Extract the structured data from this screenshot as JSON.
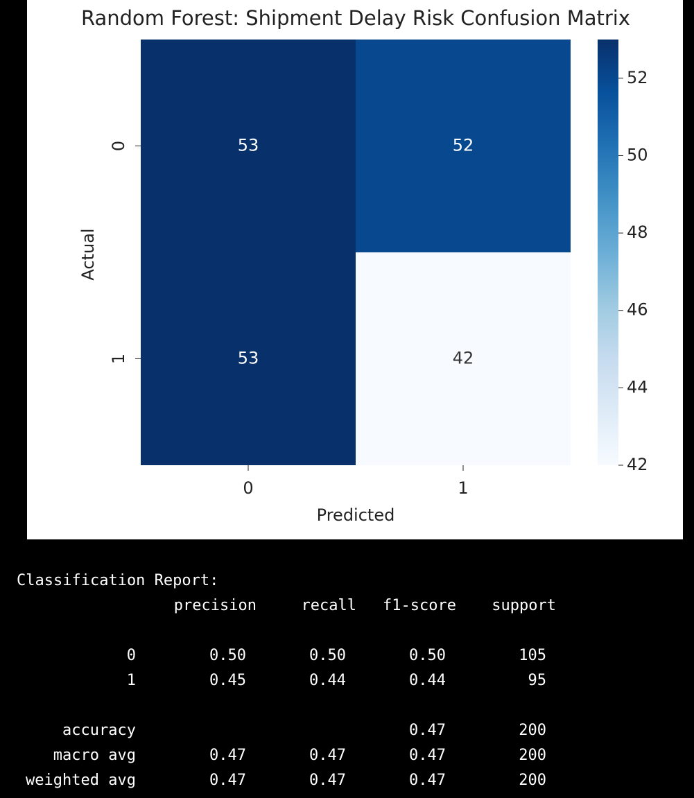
{
  "chart_data": {
    "type": "heatmap",
    "title": "Random Forest: Shipment Delay Risk Confusion Matrix",
    "x_label": "Predicted",
    "y_label": "Actual",
    "x_categories": [
      "0",
      "1"
    ],
    "y_categories": [
      "0",
      "1"
    ],
    "values": [
      [
        53,
        52
      ],
      [
        53,
        42
      ]
    ],
    "colorbar_lim": [
      42,
      53
    ],
    "colorbar_ticks": [
      42,
      44,
      46,
      48,
      50,
      52
    ],
    "colorscale": [
      "#f7fbff",
      "#deebf7",
      "#c6dbef",
      "#9ecae1",
      "#6baed6",
      "#4292c6",
      "#2171b5",
      "#08519c",
      "#08306b"
    ]
  },
  "report": {
    "title": "Classification Report:",
    "columns": [
      "precision",
      "recall",
      "f1-score",
      "support"
    ],
    "rows": [
      [
        "0",
        "0.50",
        "0.50",
        "0.50",
        105
      ],
      [
        "1",
        "0.45",
        "0.44",
        "0.44",
        95
      ],
      [
        "accuracy",
        null,
        null,
        "0.47",
        200
      ],
      [
        "macro avg",
        "0.47",
        "0.47",
        "0.47",
        200
      ],
      [
        "weighted avg",
        "0.47",
        "0.47",
        "0.47",
        200
      ]
    ]
  }
}
